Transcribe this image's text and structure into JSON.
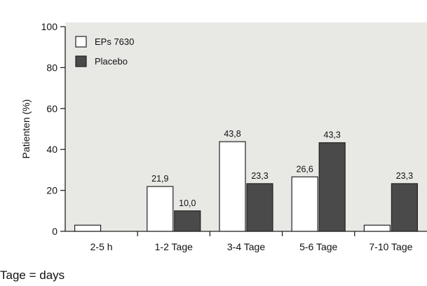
{
  "chart_data": {
    "type": "bar",
    "categories": [
      "2-5 h",
      "1-2 Tage",
      "3-4 Tage",
      "5-6 Tage",
      "7-10 Tage"
    ],
    "series": [
      {
        "name": "EPs 7630",
        "values": [
          3,
          21.9,
          43.8,
          26.6,
          3
        ],
        "labels": [
          "",
          "21,9",
          "43,8",
          "26,6",
          ""
        ],
        "color": "#ffffff"
      },
      {
        "name": "Placebo",
        "values": [
          0,
          10.0,
          23.3,
          43.3,
          23.3
        ],
        "labels": [
          "",
          "10,0",
          "23,3",
          "43,3",
          "23,3"
        ],
        "color": "#4a4a4a"
      }
    ],
    "ylabel": "Patienten (%)",
    "xlabel": "",
    "ylim": [
      0,
      100
    ],
    "yticks": [
      0,
      20,
      40,
      60,
      80,
      100
    ],
    "grid": false,
    "legend_position": "top-left",
    "background": "#e8e8e5"
  },
  "caption": "Tage = days"
}
